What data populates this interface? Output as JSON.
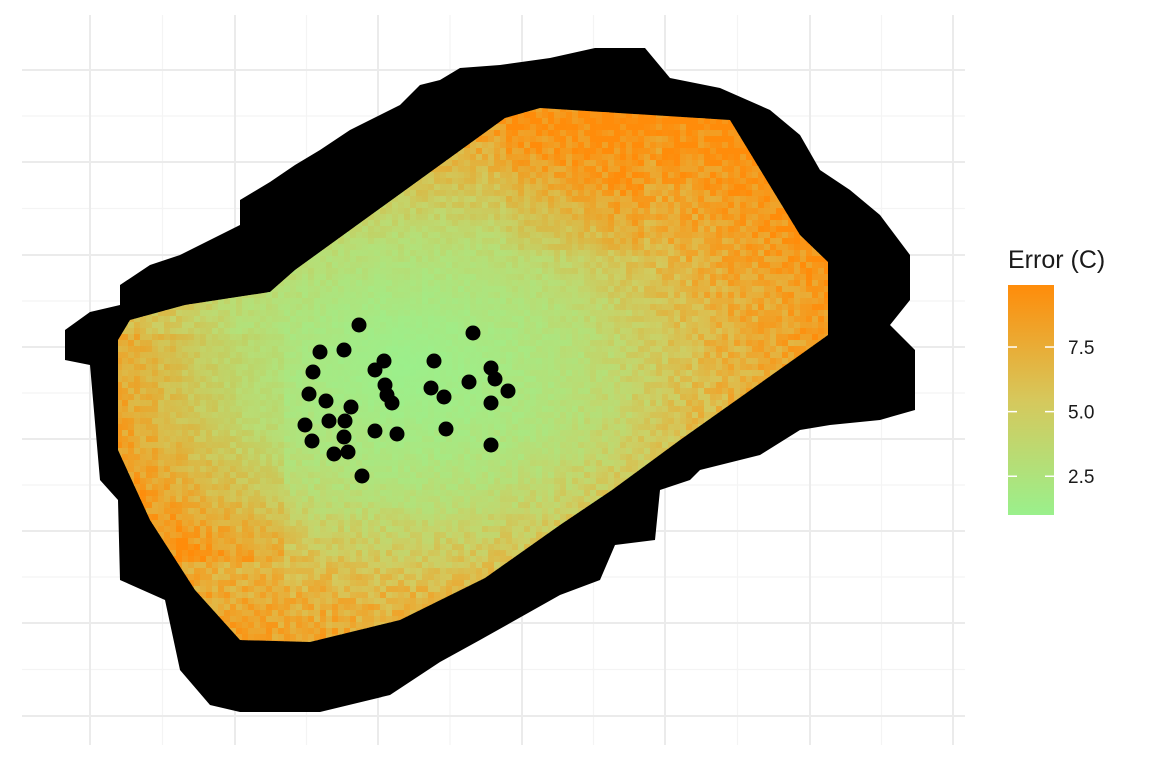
{
  "legend": {
    "title": "Error (C)",
    "ticks": [
      {
        "value": 2.5,
        "label": "2.5"
      },
      {
        "value": 5.0,
        "label": "5.0"
      },
      {
        "value": 7.5,
        "label": "7.5"
      }
    ],
    "range": [
      1.0,
      9.9
    ],
    "low_color": "#9af08c",
    "mid_color": "#d6c85c",
    "high_color": "#ff8c0a"
  },
  "colors": {
    "buffer": "#d3d3d3",
    "points": "#000000",
    "grid": "#ebebeb"
  },
  "chart_data": {
    "type": "heatmap",
    "grid": true,
    "legend_position": "right",
    "station_count": 36
  }
}
